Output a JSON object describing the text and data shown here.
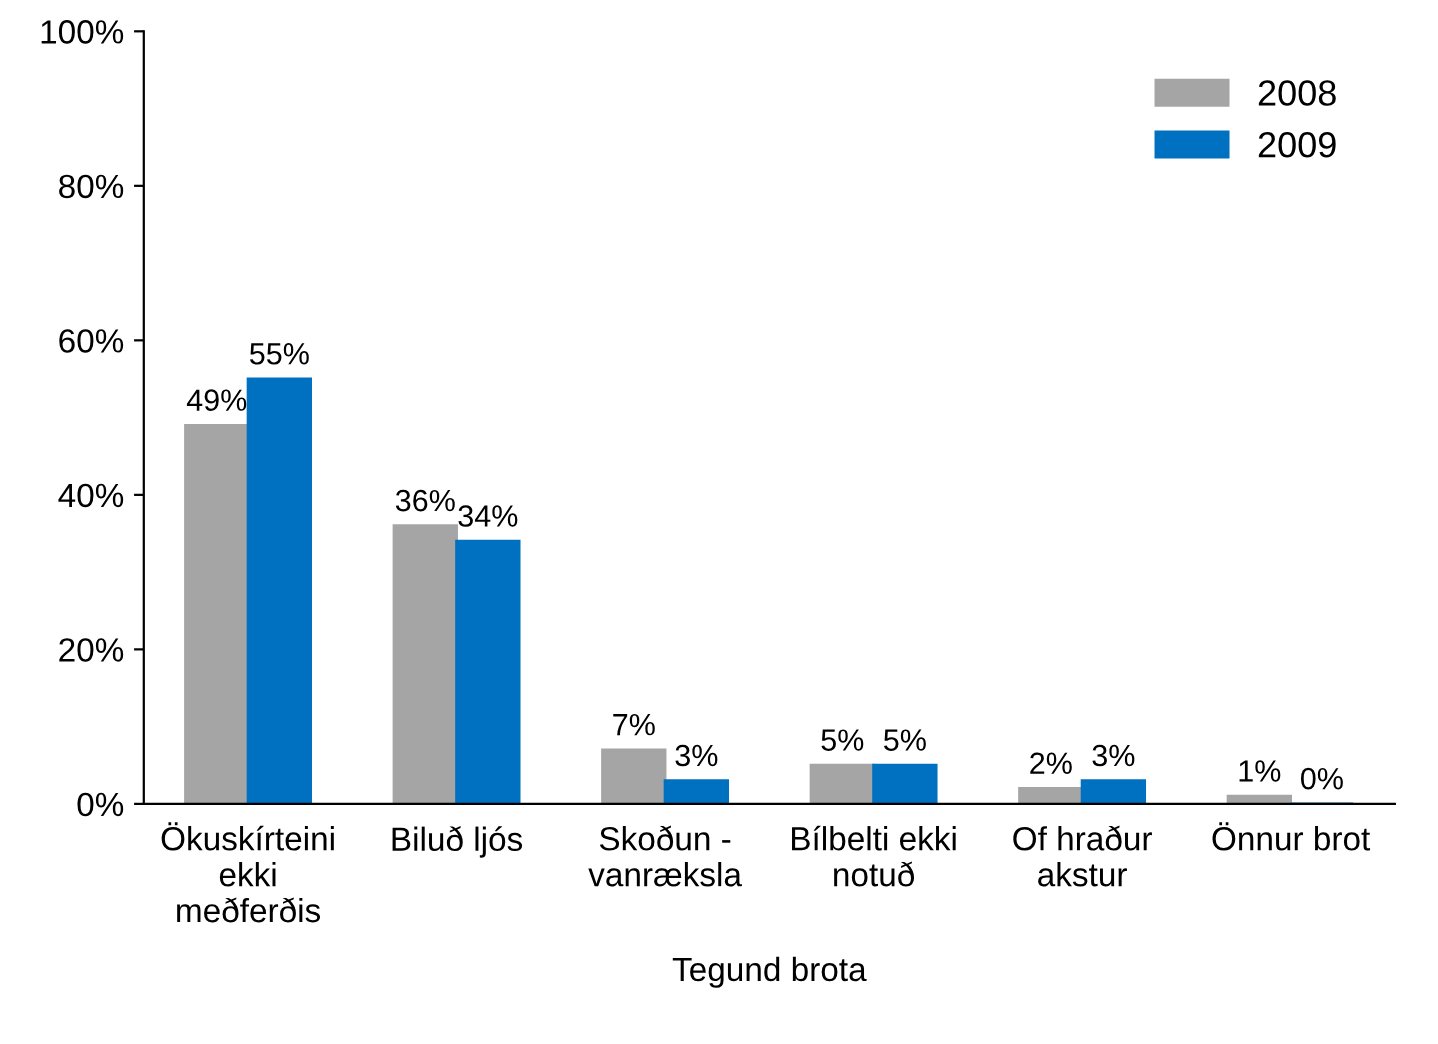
{
  "chart_data": {
    "type": "bar",
    "xlabel": "Tegund brota",
    "categories": [
      "Ökuskírteini\nekki\nmeðferðis",
      "Biluð ljós",
      "Skoðun -\nvanræksla",
      "Bílbelti ekki\nnotuð",
      "Of hraður\nakstur",
      "Önnur brot"
    ],
    "series": [
      {
        "name": "2008",
        "color": "#a5a5a5",
        "values": [
          49,
          36,
          7,
          5,
          2,
          1
        ],
        "value_labels": [
          "49%",
          "36%",
          "7%",
          "5%",
          "2%",
          "1%"
        ]
      },
      {
        "name": "2009",
        "color": "#0070c0",
        "values": [
          55,
          34,
          3,
          5,
          3,
          0
        ],
        "value_labels": [
          "55%",
          "34%",
          "3%",
          "5%",
          "3%",
          "0%"
        ]
      }
    ],
    "ylim": [
      0,
      100
    ],
    "yticks": [
      {
        "value": 0,
        "label": "0%"
      },
      {
        "value": 20,
        "label": "20%"
      },
      {
        "value": 40,
        "label": "40%"
      },
      {
        "value": 60,
        "label": "60%"
      },
      {
        "value": 80,
        "label": "80%"
      },
      {
        "value": 100,
        "label": "100%"
      }
    ],
    "grid": false,
    "legend": "top right"
  }
}
